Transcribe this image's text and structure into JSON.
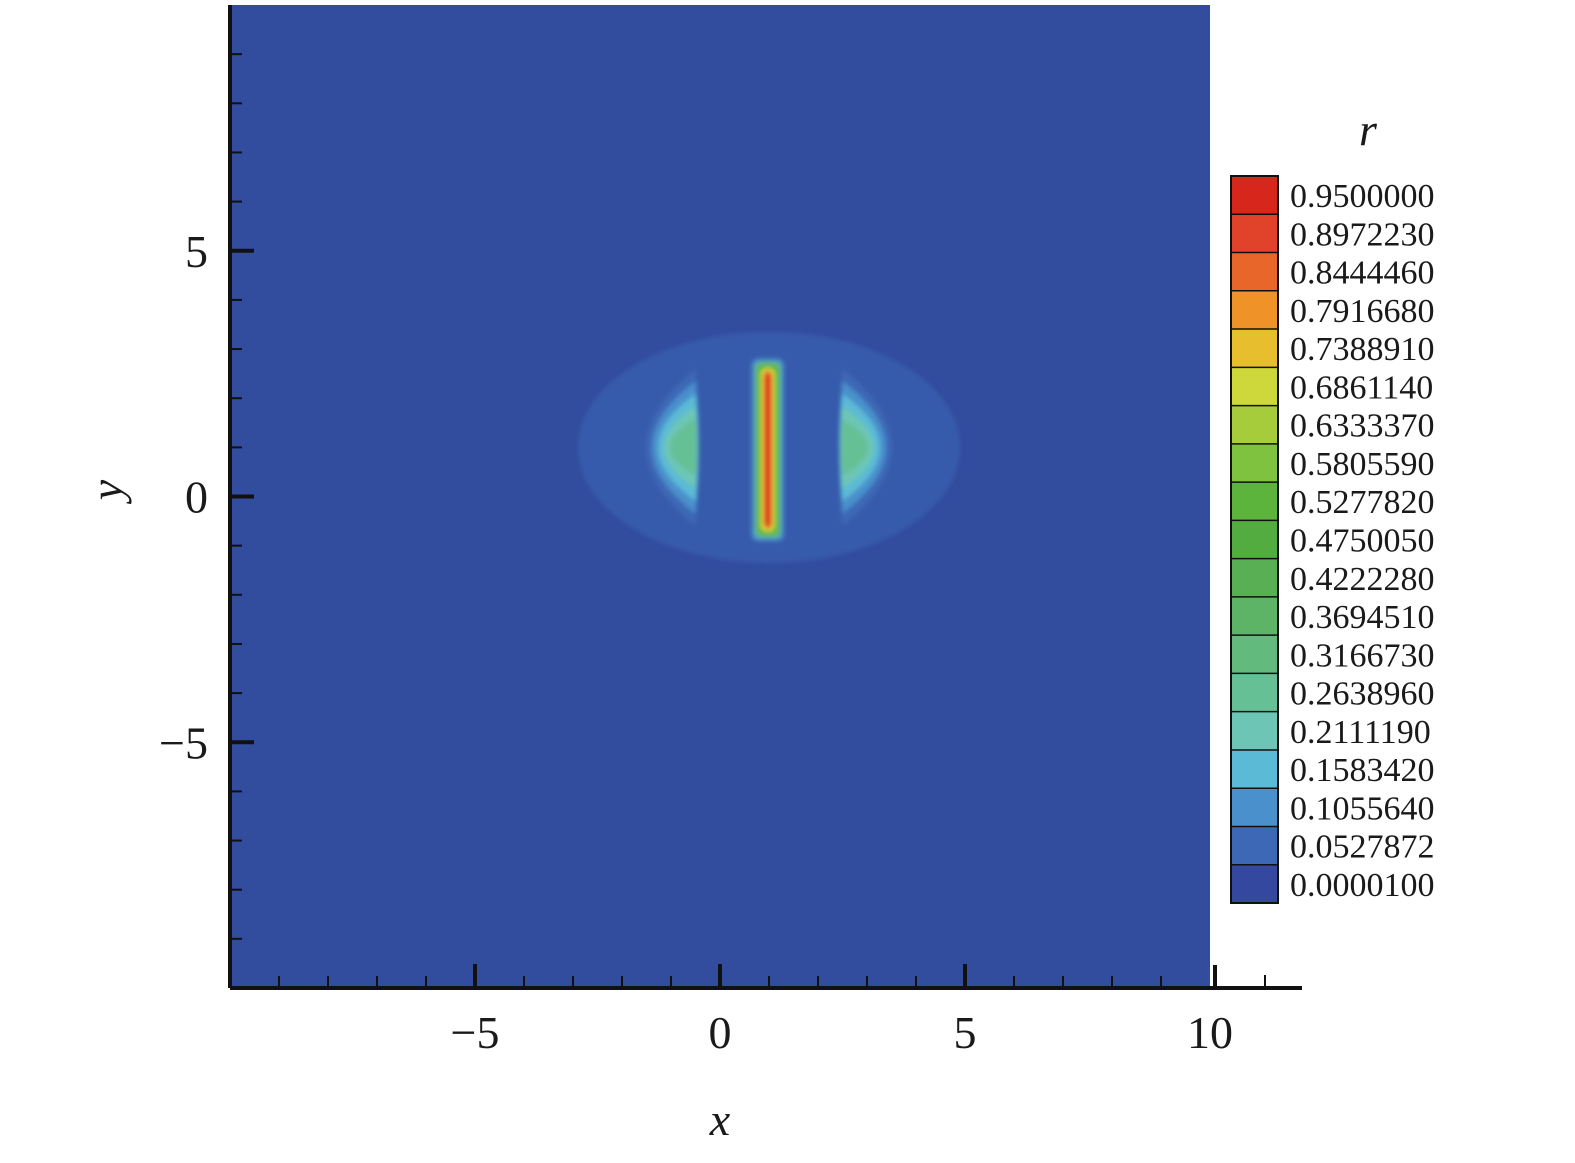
{
  "chart_data": {
    "type": "heatmap",
    "title": "",
    "xlabel": "x",
    "ylabel": "y",
    "xlim": [
      -10,
      10
    ],
    "ylim": [
      -10,
      10
    ],
    "x_ticks": [
      -5,
      0,
      5,
      10
    ],
    "y_ticks": [
      -5,
      0,
      5
    ],
    "x_tick_labels": [
      "−5",
      "0",
      "5",
      "10"
    ],
    "y_tick_labels": [
      "−5",
      "0",
      "5"
    ],
    "background_value": 1e-05,
    "features": [
      {
        "name": "center-bar",
        "x_range": [
          0.65,
          1.3
        ],
        "y_range": [
          -0.9,
          2.8
        ],
        "peak": 0.95
      },
      {
        "name": "left-crescent",
        "x_center": -1.0,
        "y_center": 1.0,
        "half_height": 1.6,
        "peak": 0.28
      },
      {
        "name": "right-crescent",
        "x_center": 3.0,
        "y_center": 1.0,
        "half_height": 1.6,
        "peak": 0.28
      }
    ],
    "colorbar": {
      "title": "r",
      "levels": [
        "0.9500000",
        "0.8972230",
        "0.8444460",
        "0.7916680",
        "0.7388910",
        "0.6861140",
        "0.6333370",
        "0.5805590",
        "0.5277820",
        "0.4750050",
        "0.4222280",
        "0.3694510",
        "0.3166730",
        "0.2638960",
        "0.2111190",
        "0.1583420",
        "0.1055640",
        "0.0527872",
        "0.0000100"
      ],
      "colors": [
        "#d7271c",
        "#e0422a",
        "#e8662a",
        "#ef9228",
        "#e6be2e",
        "#cfd83a",
        "#a6cc3c",
        "#7ec23f",
        "#5cb43d",
        "#52ac3f",
        "#59b054",
        "#5eb466",
        "#62ba7c",
        "#66c096",
        "#6dc6b5",
        "#5bbad6",
        "#4a90cc",
        "#3d68b6",
        "#33489e"
      ]
    },
    "colors": {
      "background": "#324c9e",
      "axis": "#111111"
    }
  }
}
